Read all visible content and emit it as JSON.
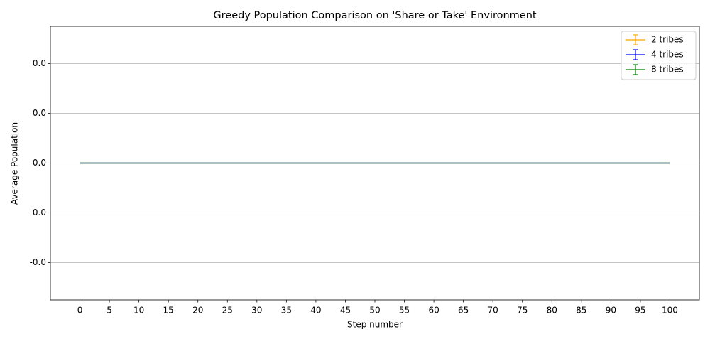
{
  "chart_data": {
    "type": "line",
    "title": "Greedy Population Comparison on 'Share or Take' Environment",
    "x_label": "Step number",
    "y_label": "Average Population",
    "x": [
      0,
      1,
      2,
      3,
      4,
      5,
      6,
      7,
      8,
      9,
      10,
      11,
      12,
      13,
      14,
      15,
      16,
      17,
      18,
      19,
      20,
      21,
      22,
      23,
      24,
      25,
      26,
      27,
      28,
      29,
      30,
      31,
      32,
      33,
      34,
      35,
      36,
      37,
      38,
      39,
      40,
      41,
      42,
      43,
      44,
      45,
      46,
      47,
      48,
      49,
      50,
      51,
      52,
      53,
      54,
      55,
      56,
      57,
      58,
      59,
      60,
      61,
      62,
      63,
      64,
      65,
      66,
      67,
      68,
      69,
      70,
      71,
      72,
      73,
      74,
      75,
      76,
      77,
      78,
      79,
      80,
      81,
      82,
      83,
      84,
      85,
      86,
      87,
      88,
      89,
      90,
      91,
      92,
      93,
      94,
      95,
      96,
      97,
      98,
      99,
      100
    ],
    "series": [
      {
        "name": "2 tribes",
        "color": "#ffa500",
        "values": [
          0,
          0,
          0,
          0,
          0,
          0,
          0,
          0,
          0,
          0,
          0,
          0,
          0,
          0,
          0,
          0,
          0,
          0,
          0,
          0,
          0,
          0,
          0,
          0,
          0,
          0,
          0,
          0,
          0,
          0,
          0,
          0,
          0,
          0,
          0,
          0,
          0,
          0,
          0,
          0,
          0,
          0,
          0,
          0,
          0,
          0,
          0,
          0,
          0,
          0,
          0,
          0,
          0,
          0,
          0,
          0,
          0,
          0,
          0,
          0,
          0,
          0,
          0,
          0,
          0,
          0,
          0,
          0,
          0,
          0,
          0,
          0,
          0,
          0,
          0,
          0,
          0,
          0,
          0,
          0,
          0,
          0,
          0,
          0,
          0,
          0,
          0,
          0,
          0,
          0,
          0,
          0,
          0,
          0,
          0,
          0,
          0,
          0,
          0,
          0,
          0
        ]
      },
      {
        "name": "4 tribes",
        "color": "#0000ff",
        "values": [
          0,
          0,
          0,
          0,
          0,
          0,
          0,
          0,
          0,
          0,
          0,
          0,
          0,
          0,
          0,
          0,
          0,
          0,
          0,
          0,
          0,
          0,
          0,
          0,
          0,
          0,
          0,
          0,
          0,
          0,
          0,
          0,
          0,
          0,
          0,
          0,
          0,
          0,
          0,
          0,
          0,
          0,
          0,
          0,
          0,
          0,
          0,
          0,
          0,
          0,
          0,
          0,
          0,
          0,
          0,
          0,
          0,
          0,
          0,
          0,
          0,
          0,
          0,
          0,
          0,
          0,
          0,
          0,
          0,
          0,
          0,
          0,
          0,
          0,
          0,
          0,
          0,
          0,
          0,
          0,
          0,
          0,
          0,
          0,
          0,
          0,
          0,
          0,
          0,
          0,
          0,
          0,
          0,
          0,
          0,
          0,
          0,
          0,
          0,
          0,
          0
        ]
      },
      {
        "name": "8 tribes",
        "color": "#008000",
        "values": [
          0,
          0,
          0,
          0,
          0,
          0,
          0,
          0,
          0,
          0,
          0,
          0,
          0,
          0,
          0,
          0,
          0,
          0,
          0,
          0,
          0,
          0,
          0,
          0,
          0,
          0,
          0,
          0,
          0,
          0,
          0,
          0,
          0,
          0,
          0,
          0,
          0,
          0,
          0,
          0,
          0,
          0,
          0,
          0,
          0,
          0,
          0,
          0,
          0,
          0,
          0,
          0,
          0,
          0,
          0,
          0,
          0,
          0,
          0,
          0,
          0,
          0,
          0,
          0,
          0,
          0,
          0,
          0,
          0,
          0,
          0,
          0,
          0,
          0,
          0,
          0,
          0,
          0,
          0,
          0,
          0,
          0,
          0,
          0,
          0,
          0,
          0,
          0,
          0,
          0,
          0,
          0,
          0,
          0,
          0,
          0,
          0,
          0,
          0,
          0,
          0
        ]
      }
    ],
    "xlim": [
      -5,
      105
    ],
    "xticks": [
      0,
      5,
      10,
      15,
      20,
      25,
      30,
      35,
      40,
      45,
      50,
      55,
      60,
      65,
      70,
      75,
      80,
      85,
      90,
      95,
      100
    ],
    "ylim": [
      -0.055,
      0.055
    ],
    "yticks": [
      {
        "value": -0.04,
        "label": "-0.0"
      },
      {
        "value": -0.02,
        "label": "-0.0"
      },
      {
        "value": 0,
        "label": "0.0"
      },
      {
        "value": 0.02,
        "label": "0.0"
      },
      {
        "value": 0.04,
        "label": "0.0"
      }
    ],
    "grid": "y",
    "legend": "upper right"
  }
}
